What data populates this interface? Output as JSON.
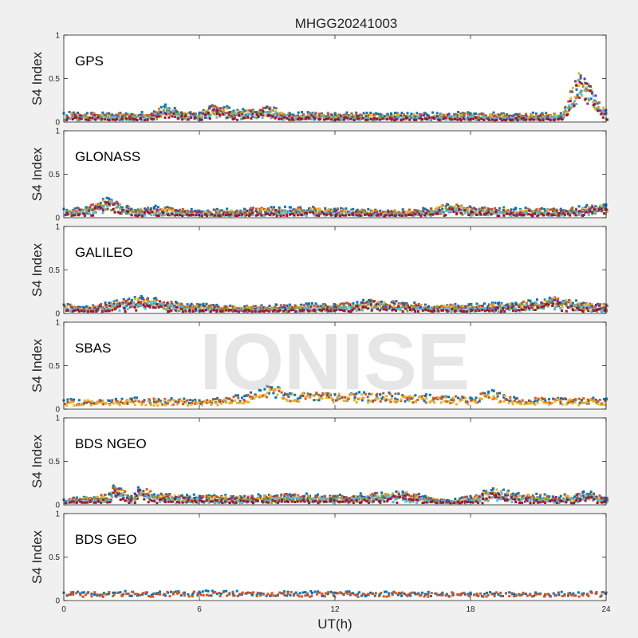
{
  "watermark": "IONISE",
  "chart_data": {
    "type": "scatter",
    "title": "MHGG20241003",
    "xlabel": "UT(h)",
    "ylabel": "S4 Index",
    "xlim": [
      0,
      24
    ],
    "ylim": [
      0,
      1
    ],
    "x_ticks": [
      "0",
      "6",
      "12",
      "18",
      "24"
    ],
    "y_ticks": [
      "0",
      "0.5",
      "1"
    ],
    "grid": false,
    "colors": [
      "#0072BD",
      "#D95319",
      "#EDB120",
      "#7E2F8E",
      "#77AC30",
      "#4DBEEE",
      "#A2142F"
    ],
    "panels": [
      {
        "label": "GPS",
        "series_count": 7,
        "points": [
          [
            0,
            0.1
          ],
          [
            2,
            0.1
          ],
          [
            3,
            0.09
          ],
          [
            4,
            0.12
          ],
          [
            4.5,
            0.2
          ],
          [
            5,
            0.12
          ],
          [
            6,
            0.1
          ],
          [
            6.5,
            0.18
          ],
          [
            8,
            0.13
          ],
          [
            9,
            0.17
          ],
          [
            10,
            0.1
          ],
          [
            12,
            0.1
          ],
          [
            14,
            0.09
          ],
          [
            16,
            0.1
          ],
          [
            18,
            0.1
          ],
          [
            20,
            0.09
          ],
          [
            22,
            0.1
          ],
          [
            22.8,
            0.56
          ],
          [
            24,
            0.1
          ]
        ]
      },
      {
        "label": "GLONASS",
        "series_count": 7,
        "points": [
          [
            0,
            0.1
          ],
          [
            1,
            0.12
          ],
          [
            2,
            0.22
          ],
          [
            3,
            0.1
          ],
          [
            4,
            0.12
          ],
          [
            6,
            0.08
          ],
          [
            8,
            0.1
          ],
          [
            10,
            0.12
          ],
          [
            12,
            0.1
          ],
          [
            13,
            0.09
          ],
          [
            14,
            0.08
          ],
          [
            16,
            0.1
          ],
          [
            17,
            0.15
          ],
          [
            18,
            0.12
          ],
          [
            20,
            0.1
          ],
          [
            22,
            0.1
          ],
          [
            24,
            0.15
          ]
        ]
      },
      {
        "label": "GALILEO",
        "series_count": 7,
        "points": [
          [
            0,
            0.1
          ],
          [
            1,
            0.08
          ],
          [
            2,
            0.12
          ],
          [
            3.5,
            0.18
          ],
          [
            5,
            0.12
          ],
          [
            6,
            0.1
          ],
          [
            8,
            0.08
          ],
          [
            10,
            0.1
          ],
          [
            12,
            0.1
          ],
          [
            13.5,
            0.15
          ],
          [
            15,
            0.12
          ],
          [
            16,
            0.1
          ],
          [
            18,
            0.1
          ],
          [
            20,
            0.12
          ],
          [
            21.5,
            0.18
          ],
          [
            23,
            0.12
          ],
          [
            24,
            0.1
          ]
        ]
      },
      {
        "label": "SBAS",
        "series_count": 3,
        "points": [
          [
            0,
            0.1
          ],
          [
            3,
            0.12
          ],
          [
            6,
            0.1
          ],
          [
            8,
            0.15
          ],
          [
            9.2,
            0.25
          ],
          [
            10,
            0.18
          ],
          [
            12,
            0.17
          ],
          [
            14,
            0.17
          ],
          [
            16,
            0.15
          ],
          [
            18,
            0.13
          ],
          [
            18.8,
            0.2
          ],
          [
            20,
            0.12
          ],
          [
            22,
            0.12
          ],
          [
            24,
            0.11
          ]
        ]
      },
      {
        "label": "BDS NGEO",
        "series_count": 7,
        "points": [
          [
            0,
            0.06
          ],
          [
            2,
            0.12
          ],
          [
            2.2,
            0.22
          ],
          [
            3,
            0.1
          ],
          [
            3.3,
            0.2
          ],
          [
            4,
            0.12
          ],
          [
            6,
            0.1
          ],
          [
            8,
            0.1
          ],
          [
            10,
            0.12
          ],
          [
            12,
            0.1
          ],
          [
            15,
            0.15
          ],
          [
            16,
            0.1
          ],
          [
            17,
            0.05
          ],
          [
            18,
            0.1
          ],
          [
            19,
            0.18
          ],
          [
            20,
            0.12
          ],
          [
            22,
            0.1
          ],
          [
            23,
            0.15
          ],
          [
            24,
            0.08
          ]
        ]
      },
      {
        "label": "BDS GEO",
        "series_count": 2,
        "points": [
          [
            0,
            0.09
          ],
          [
            6,
            0.1
          ],
          [
            12,
            0.09
          ],
          [
            18,
            0.09
          ],
          [
            24,
            0.09
          ]
        ]
      }
    ]
  }
}
